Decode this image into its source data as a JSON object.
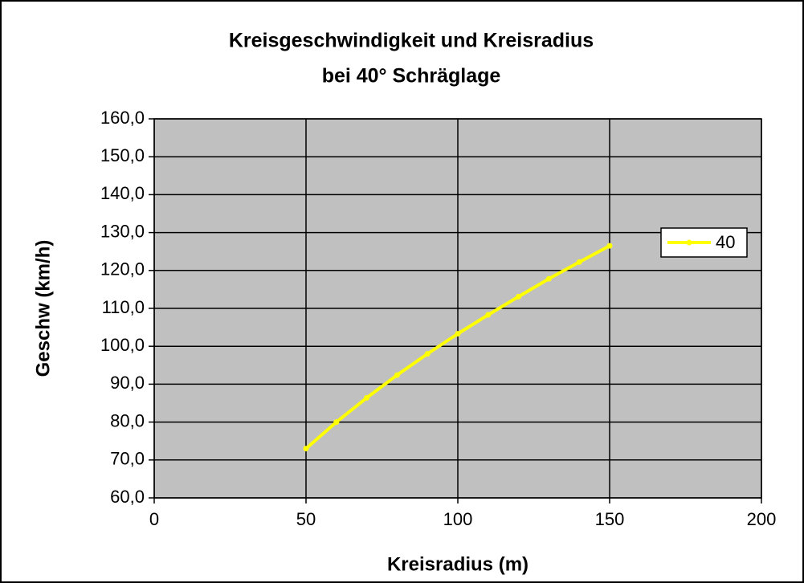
{
  "chart_data": {
    "type": "line",
    "title": [
      "Kreisgeschwindigkeit und Kreisradius",
      "bei 40° Schräglage"
    ],
    "x_label": "Kreisradius (m)",
    "y_label": "Geschw  (km/h)",
    "x": [
      50,
      60,
      70,
      80,
      90,
      100,
      110,
      120,
      130,
      140,
      150
    ],
    "series": [
      {
        "name": "40",
        "color": "#ffff00",
        "values": [
          73.0,
          80.0,
          86.4,
          92.4,
          98.0,
          103.3,
          108.3,
          113.1,
          117.8,
          122.2,
          126.5
        ]
      }
    ],
    "xlim": [
      0,
      200
    ],
    "xticks": [
      0,
      50,
      100,
      150,
      200
    ],
    "ylim": [
      60,
      160
    ],
    "yticks": [
      {
        "value": 60,
        "label": "60,0"
      },
      {
        "value": 70,
        "label": "70,0"
      },
      {
        "value": 80,
        "label": "80,0"
      },
      {
        "value": 90,
        "label": "90,0"
      },
      {
        "value": 100,
        "label": "100,0"
      },
      {
        "value": 110,
        "label": "110,0"
      },
      {
        "value": 120,
        "label": "120,0"
      },
      {
        "value": 130,
        "label": "130,0"
      },
      {
        "value": 140,
        "label": "140,0"
      },
      {
        "value": 150,
        "label": "150,0"
      },
      {
        "value": 160,
        "label": "160,0"
      }
    ],
    "grid": true,
    "legend": "right",
    "plot_background": "#c0c0c0"
  }
}
